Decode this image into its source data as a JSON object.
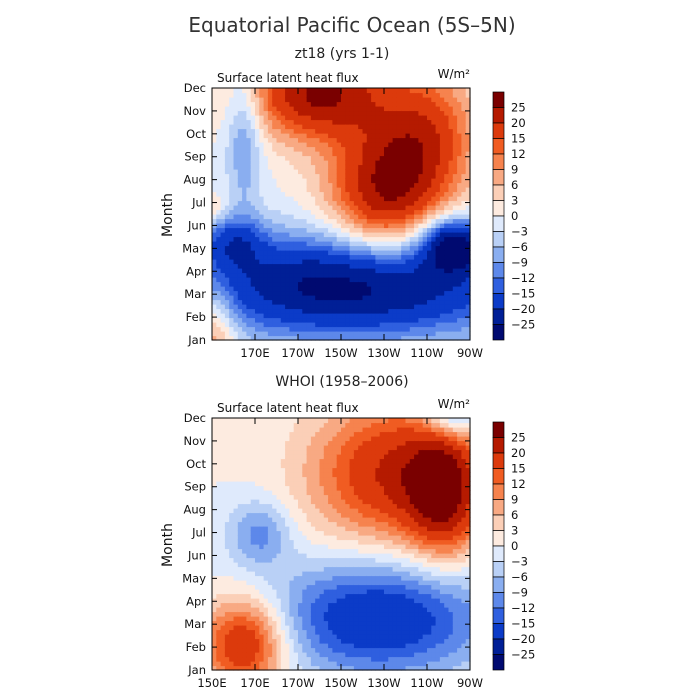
{
  "title": "Equatorial Pacific Ocean (5S–5N)",
  "colorbar": {
    "labels": [
      "25",
      "20",
      "15",
      "12",
      "9",
      "6",
      "3",
      "0",
      "−3",
      "−6",
      "−9",
      "−12",
      "−15",
      "−20",
      "−25"
    ],
    "colors": [
      "#7a0000",
      "#b51a00",
      "#dc3a0c",
      "#f05c22",
      "#f6834e",
      "#f8a983",
      "#fbcfb7",
      "#fdebe0",
      "#dfeafc",
      "#b9d0f6",
      "#8aaef0",
      "#5d88ea",
      "#2f5fdf",
      "#0b3bc8",
      "#001f96",
      "#000a70"
    ]
  },
  "chart_data": [
    {
      "type": "heatmap",
      "title": "zt18 (yrs 1-1)",
      "variable_label": "Surface latent heat flux",
      "units": "W/m²",
      "ylabel": "Month",
      "yticks": [
        "Jan",
        "Feb",
        "Mar",
        "Apr",
        "May",
        "Jun",
        "Jul",
        "Aug",
        "Sep",
        "Oct",
        "Nov",
        "Dec"
      ],
      "xticks": [
        "",
        "170E",
        "170W",
        "150W",
        "130W",
        "110W",
        "90W"
      ],
      "x_lon_range": [
        150,
        270
      ],
      "levels": [
        -25,
        -20,
        -15,
        -12,
        -9,
        -6,
        -3,
        0,
        3,
        6,
        9,
        12,
        15,
        20,
        25
      ],
      "features": [
        {
          "lon": 150,
          "mon": 0.5,
          "v": 12,
          "sx": 8,
          "sy": 1.4
        },
        {
          "lon": 150,
          "mon": 5.8,
          "v": 6,
          "sx": 4,
          "sy": 0.4
        },
        {
          "lon": 165,
          "mon": 9.0,
          "v": -10,
          "sx": 6,
          "sy": 2.2
        },
        {
          "lon": 160,
          "mon": 4.3,
          "v": -12,
          "sx": 10,
          "sy": 0.8
        },
        {
          "lon": 200,
          "mon": 10.8,
          "v": 26,
          "sx": 22,
          "sy": 1.4
        },
        {
          "lon": 230,
          "mon": 6.5,
          "v": 24,
          "sx": 18,
          "sy": 2.0
        },
        {
          "lon": 250,
          "mon": 9.0,
          "v": 16,
          "sx": 16,
          "sy": 2.0
        },
        {
          "lon": 215,
          "mon": 2.4,
          "v": -28,
          "sx": 55,
          "sy": 1.6
        },
        {
          "lon": 262,
          "mon": 4.2,
          "v": -24,
          "sx": 10,
          "sy": 0.8
        }
      ]
    },
    {
      "type": "heatmap",
      "title": "WHOI (1958–2006)",
      "variable_label": "Surface latent heat flux",
      "units": "W/m²",
      "ylabel": "Month",
      "yticks": [
        "Jan",
        "Feb",
        "Mar",
        "Apr",
        "May",
        "Jun",
        "Jul",
        "Aug",
        "Sep",
        "Oct",
        "Nov",
        "Dec"
      ],
      "xticks": [
        "150E",
        "170E",
        "170W",
        "150W",
        "130W",
        "110W",
        "90W"
      ],
      "x_lon_range": [
        150,
        270
      ],
      "levels": [
        -25,
        -20,
        -15,
        -12,
        -9,
        -6,
        -3,
        0,
        3,
        6,
        9,
        12,
        15,
        20,
        25
      ],
      "features": [
        {
          "lon": 165,
          "mon": 1.2,
          "v": 22,
          "sx": 14,
          "sy": 1.4
        },
        {
          "lon": 172,
          "mon": 6.0,
          "v": -10,
          "sx": 10,
          "sy": 1.0
        },
        {
          "lon": 233,
          "mon": 8.6,
          "v": 20,
          "sx": 26,
          "sy": 2.2
        },
        {
          "lon": 258,
          "mon": 7.8,
          "v": 22,
          "sx": 12,
          "sy": 2.0
        },
        {
          "lon": 228,
          "mon": 2.3,
          "v": -20,
          "sx": 36,
          "sy": 1.8
        },
        {
          "lon": 262,
          "mon": 11.3,
          "v": -16,
          "sx": 10,
          "sy": 0.8
        }
      ]
    }
  ]
}
